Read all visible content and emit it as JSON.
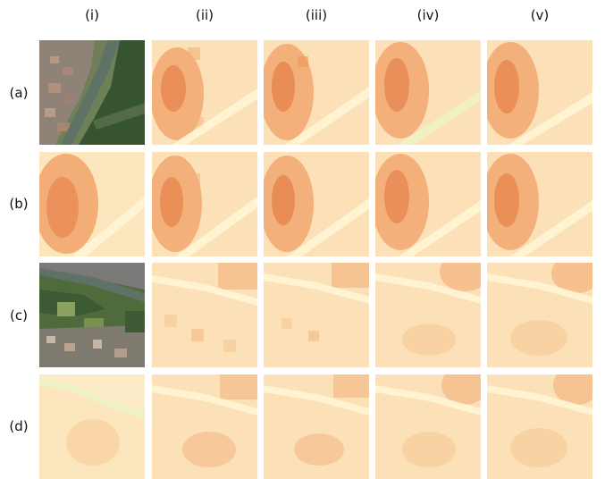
{
  "column_labels": [
    "(i)",
    "(ii)",
    "(iii)",
    "(iv)",
    "(v)"
  ],
  "row_labels": [
    "(a)",
    "(b)",
    "(c)",
    "(d)"
  ],
  "rows": [
    {
      "label": "(a)",
      "tiles": [
        {
          "column": "(i)",
          "kind": "satellite-image"
        },
        {
          "column": "(ii)",
          "kind": "heatmap"
        },
        {
          "column": "(iii)",
          "kind": "heatmap"
        },
        {
          "column": "(iv)",
          "kind": "heatmap"
        },
        {
          "column": "(v)",
          "kind": "heatmap"
        }
      ]
    },
    {
      "label": "(b)",
      "tiles": [
        {
          "column": "(i)",
          "kind": "heatmap"
        },
        {
          "column": "(ii)",
          "kind": "heatmap"
        },
        {
          "column": "(iii)",
          "kind": "heatmap"
        },
        {
          "column": "(iv)",
          "kind": "heatmap"
        },
        {
          "column": "(v)",
          "kind": "heatmap"
        }
      ]
    },
    {
      "label": "(c)",
      "tiles": [
        {
          "column": "(i)",
          "kind": "satellite-image"
        },
        {
          "column": "(ii)",
          "kind": "heatmap"
        },
        {
          "column": "(iii)",
          "kind": "heatmap"
        },
        {
          "column": "(iv)",
          "kind": "heatmap"
        },
        {
          "column": "(v)",
          "kind": "heatmap"
        }
      ]
    },
    {
      "label": "(d)",
      "tiles": [
        {
          "column": "(i)",
          "kind": "heatmap"
        },
        {
          "column": "(ii)",
          "kind": "heatmap"
        },
        {
          "column": "(iii)",
          "kind": "heatmap"
        },
        {
          "column": "(iv)",
          "kind": "heatmap"
        },
        {
          "column": "(v)",
          "kind": "heatmap"
        }
      ]
    }
  ],
  "colors": {
    "heat_dark": "#e47a44",
    "heat_mid": "#f3aa6a",
    "heat_light": "#fce6be",
    "heat_pale": "#fff6d6",
    "river_tint": "#eef2c4",
    "satellite_forest": "#3c5a34",
    "satellite_field": "#6f8c4e",
    "satellite_river": "#5f7266",
    "satellite_urban": "#9c8a80"
  }
}
